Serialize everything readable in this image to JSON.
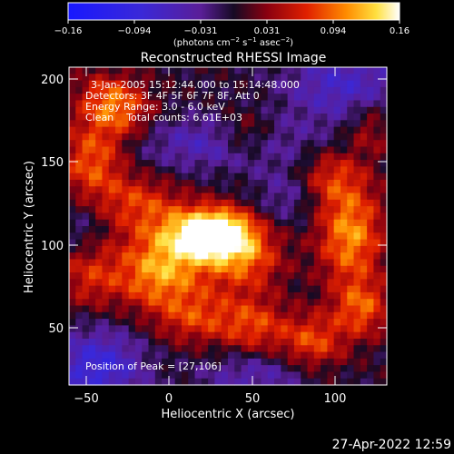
{
  "colorbar": {
    "ticks": [
      "−0.16",
      "−0.094",
      "−0.031",
      "0.031",
      "0.094",
      "0.16"
    ],
    "units_main": "(photons cm",
    "units_sup1": "−2",
    "units_mid1": " s",
    "units_sup2": "−1",
    "units_mid2": " asec",
    "units_sup3": "−2",
    "units_end": ")",
    "colormap": "blue-purple-red-yellow-white"
  },
  "plot": {
    "title": "Reconstructed RHESSI Image",
    "info_lines": [
      "3-Jan-2005 15:12:44.000 to 15:14:48.000",
      "Detectors: 3F 4F 5F 6F 7F 8F, Att 0",
      "Energy Range: 3.0 - 6.0 keV",
      "Clean    Total counts: 6.61E+03"
    ],
    "peak_label": "Position of Peak = [27,106]",
    "x_axis_label": "Heliocentric X (arcsec)",
    "y_axis_label": "Heliocentric Y (arcsec)",
    "x_ticks": [
      "−50",
      "0",
      "50",
      "100"
    ],
    "y_ticks": [
      "50",
      "100",
      "150",
      "200"
    ]
  },
  "footer": {
    "timestamp": "27-Apr-2022 12:59"
  },
  "chart_data": {
    "type": "heatmap",
    "title": "Reconstructed RHESSI Image",
    "xlabel": "Heliocentric X (arcsec)",
    "ylabel": "Heliocentric Y (arcsec)",
    "xlim": [
      -62,
      130
    ],
    "ylim": [
      14,
      206
    ],
    "colorbar_range": [
      -0.16,
      0.16
    ],
    "colorbar_ticks": [
      -0.16,
      -0.094,
      -0.031,
      0.031,
      0.094,
      0.16
    ],
    "peak": [
      27,
      106
    ],
    "sources": [
      {
        "x": 27,
        "y": 106,
        "sx": 16,
        "sy": 10,
        "a": 0.16
      },
      {
        "x": 5,
        "y": 100,
        "sx": 22,
        "sy": 16,
        "a": 0.09
      },
      {
        "x": 45,
        "y": 90,
        "sx": 16,
        "sy": 14,
        "a": 0.08
      },
      {
        "x": -10,
        "y": 78,
        "sx": 18,
        "sy": 14,
        "a": 0.08
      },
      {
        "x": -48,
        "y": 150,
        "sx": 14,
        "sy": 18,
        "a": 0.09
      },
      {
        "x": -30,
        "y": 178,
        "sx": 14,
        "sy": 12,
        "a": 0.07
      },
      {
        "x": -20,
        "y": 125,
        "sx": 16,
        "sy": 12,
        "a": 0.06
      },
      {
        "x": 45,
        "y": 165,
        "sx": 12,
        "sy": 10,
        "a": 0.06
      },
      {
        "x": 15,
        "y": 55,
        "sx": 18,
        "sy": 12,
        "a": 0.07
      },
      {
        "x": 50,
        "y": 50,
        "sx": 14,
        "sy": 12,
        "a": 0.07
      },
      {
        "x": 85,
        "y": 40,
        "sx": 14,
        "sy": 12,
        "a": 0.08
      },
      {
        "x": 108,
        "y": 105,
        "sx": 14,
        "sy": 22,
        "a": 0.11
      },
      {
        "x": 115,
        "y": 60,
        "sx": 12,
        "sy": 12,
        "a": 0.08
      },
      {
        "x": 95,
        "y": 140,
        "sx": 14,
        "sy": 12,
        "a": 0.06
      },
      {
        "x": -50,
        "y": 80,
        "sx": 14,
        "sy": 14,
        "a": 0.06
      },
      {
        "x": 120,
        "y": 170,
        "sx": 10,
        "sy": 12,
        "a": 0.05
      },
      {
        "x": -40,
        "y": 190,
        "sx": 14,
        "sy": 10,
        "a": 0.05
      },
      {
        "x": -45,
        "y": 25,
        "sx": 20,
        "sy": 16,
        "a": -0.09
      },
      {
        "x": 30,
        "y": 160,
        "sx": 40,
        "sy": 12,
        "a": -0.06
      },
      {
        "x": 105,
        "y": 195,
        "sx": 26,
        "sy": 16,
        "a": -0.07
      },
      {
        "x": 50,
        "y": 20,
        "sx": 24,
        "sy": 10,
        "a": -0.05
      },
      {
        "x": 70,
        "y": 128,
        "sx": 14,
        "sy": 12,
        "a": -0.04
      },
      {
        "x": -55,
        "y": 110,
        "sx": 10,
        "sy": 12,
        "a": -0.03
      }
    ]
  }
}
